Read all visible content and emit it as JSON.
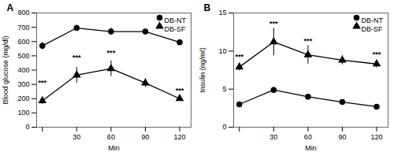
{
  "chart_data": [
    {
      "type": "line",
      "title": "A",
      "x": [
        0,
        30,
        60,
        90,
        120
      ],
      "series": [
        {
          "name": "DB-NT",
          "color": "#000000",
          "marker": "circle",
          "values": [
            570,
            695,
            670,
            670,
            595
          ],
          "errors": [
            25,
            20,
            25,
            15,
            20
          ]
        },
        {
          "name": "DB-SF",
          "color": "#000000",
          "marker": "triangle",
          "values": [
            185,
            365,
            410,
            310,
            200
          ],
          "errors": [
            25,
            55,
            55,
            30,
            15
          ]
        }
      ],
      "annotations": [
        {
          "x": 0,
          "y": 295,
          "text": "***"
        },
        {
          "x": 30,
          "y": 470,
          "text": "***"
        },
        {
          "x": 60,
          "y": 505,
          "text": "***"
        },
        {
          "x": 120,
          "y": 240,
          "text": "***"
        }
      ],
      "xlabel": "Min",
      "ylabel": "Blood glucose (mg/dl)",
      "xlim": [
        -5,
        130
      ],
      "xticks": [
        {
          "value": 0,
          "label": ""
        },
        30,
        60,
        90,
        120
      ],
      "ylim": [
        0,
        800
      ],
      "yticks": [
        0,
        100,
        200,
        300,
        400,
        500,
        600,
        700,
        800
      ],
      "legend": "upper right",
      "grid": false
    },
    {
      "type": "line",
      "title": "B",
      "x": [
        0,
        30,
        60,
        90,
        120
      ],
      "series": [
        {
          "name": "DB-NT",
          "color": "#000000",
          "marker": "circle",
          "values": [
            3.0,
            4.9,
            4.0,
            3.3,
            2.7
          ],
          "errors": [
            0.3,
            0.35,
            0.3,
            0.3,
            0.25
          ]
        },
        {
          "name": "DB-SF",
          "color": "#000000",
          "marker": "triangle",
          "values": [
            7.9,
            11.2,
            9.5,
            8.8,
            8.3
          ],
          "errors": [
            0.5,
            1.8,
            1.2,
            0.6,
            0.5
          ]
        }
      ],
      "annotations": [
        {
          "x": 0,
          "y": 9.0,
          "text": "***"
        },
        {
          "x": 30,
          "y": 13.3,
          "text": "***"
        },
        {
          "x": 60,
          "y": 11.0,
          "text": "***"
        },
        {
          "x": 120,
          "y": 9.3,
          "text": "***"
        }
      ],
      "xlabel": "Min",
      "ylabel": "Insulin (ng/mℓ)",
      "xlim": [
        -5,
        130
      ],
      "xticks": [
        {
          "value": 0,
          "label": ""
        },
        30,
        60,
        90,
        120
      ],
      "ylim": [
        0,
        15
      ],
      "yticks": [
        0,
        5,
        10,
        15
      ],
      "legend": "upper right",
      "grid": false
    }
  ]
}
